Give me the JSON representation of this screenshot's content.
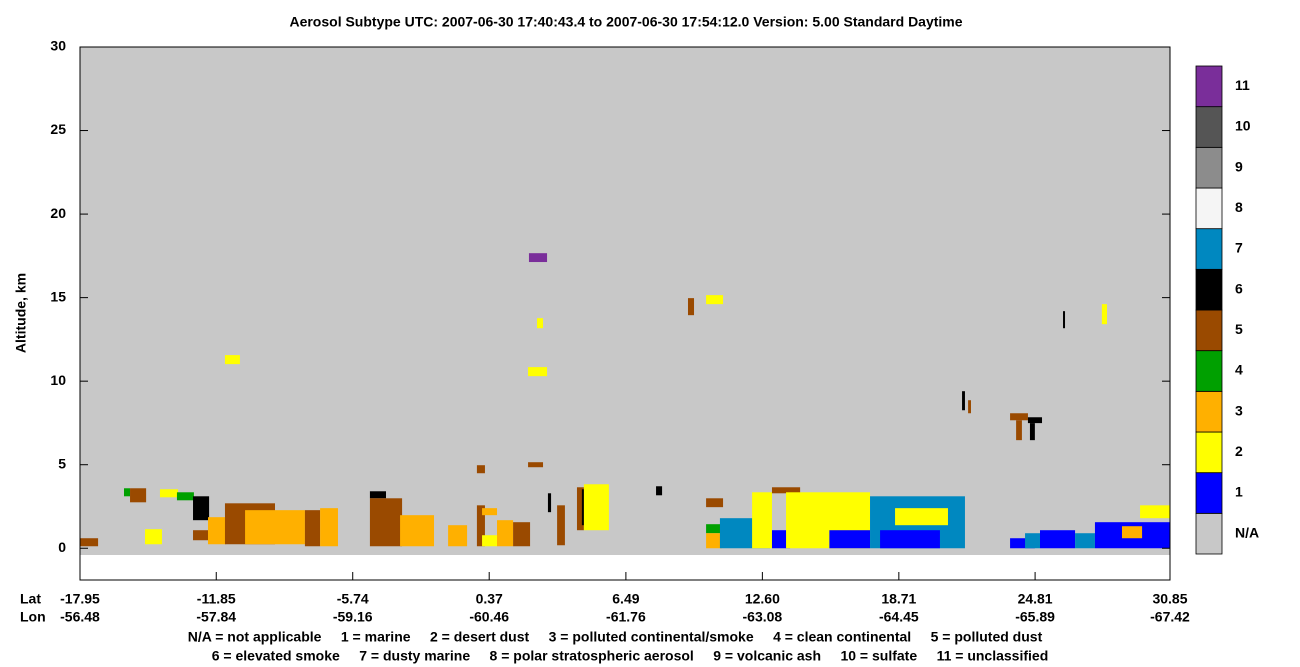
{
  "chart_data": {
    "type": "curtain",
    "title": "Aerosol Subtype    UTC:  2007-06-30    17:40:43.4  to  2007-06-30    17:54:12.0    Version: 5.00  Standard Daytime",
    "y_label": "Altitude, km",
    "ylim": [
      -1.9,
      30
    ],
    "yticks": [
      0,
      5,
      10,
      15,
      20,
      25,
      30
    ],
    "xlim": [
      -17.95,
      30.85
    ],
    "x_row_labels": [
      "Lat",
      "Lon"
    ],
    "xticks": [
      {
        "value": -17.95,
        "label": "-17.95",
        "lon": "-56.48"
      },
      {
        "value": -11.85,
        "label": "-11.85",
        "lon": "-57.84"
      },
      {
        "value": -5.74,
        "label": "-5.74",
        "lon": "-59.16"
      },
      {
        "value": 0.37,
        "label": "0.37",
        "lon": "-60.46"
      },
      {
        "value": 6.49,
        "label": "6.49",
        "lon": "-61.76"
      },
      {
        "value": 12.6,
        "label": "12.60",
        "lon": "-63.08"
      },
      {
        "value": 18.71,
        "label": "18.71",
        "lon": "-64.45"
      },
      {
        "value": 24.81,
        "label": "24.81",
        "lon": "-65.89"
      },
      {
        "value": 30.85,
        "label": "30.85",
        "lon": "-67.42"
      }
    ],
    "background_color": "#c8c8c8",
    "colorbar": {
      "labels": [
        "N/A",
        "1",
        "2",
        "3",
        "4",
        "5",
        "6",
        "7",
        "8",
        "9",
        "10",
        "11"
      ],
      "colors": [
        "#c8c8c8",
        "#0000ff",
        "#ffff00",
        "#ffb000",
        "#00a000",
        "#9a4a00",
        "#000000",
        "#0088c0",
        "#f5f5f5",
        "#8c8c8c",
        "#555555",
        "#7a2e9a"
      ]
    },
    "legend_lines": [
      "N/A = not applicable     1 = marine     2 = desert dust     3 = polluted continental/smoke     4 = clean continental     5 = polluted dust",
      "6 = elevated smoke     7 = dusty marine     8 = polar stratospheric aerosol     9 = volcanic ash     10 = sulfate     11 = unclassified"
    ],
    "patches": [
      [
        -17.95,
        -17.14,
        0.12,
        0.6,
        5
      ],
      [
        -15.98,
        -15.71,
        3.11,
        3.59,
        4
      ],
      [
        -15.71,
        -14.99,
        2.75,
        3.59,
        5
      ],
      [
        -15.04,
        -14.28,
        0.24,
        1.14,
        2
      ],
      [
        -14.37,
        -13.56,
        3.05,
        3.53,
        2
      ],
      [
        -13.61,
        -12.85,
        2.87,
        3.35,
        4
      ],
      [
        -12.89,
        -12.17,
        1.68,
        3.11,
        6
      ],
      [
        -12.89,
        -12.17,
        0.48,
        1.08,
        5
      ],
      [
        -12.22,
        -11.41,
        0.24,
        1.86,
        3
      ],
      [
        -11.46,
        -9.22,
        0.24,
        2.69,
        5
      ],
      [
        -10.56,
        -7.88,
        0.24,
        2.28,
        3
      ],
      [
        -7.88,
        -7.2,
        0.12,
        2.28,
        5
      ],
      [
        -7.2,
        -6.4,
        0.12,
        2.4,
        3
      ],
      [
        -11.46,
        -10.79,
        11.02,
        11.56,
        2
      ],
      [
        -4.97,
        -4.25,
        2.99,
        3.41,
        6
      ],
      [
        -4.97,
        -3.53,
        0.12,
        2.99,
        5
      ],
      [
        -3.62,
        -2.1,
        0.12,
        1.98,
        3
      ],
      [
        -1.47,
        -0.62,
        0.12,
        1.38,
        3
      ],
      [
        -0.18,
        0.18,
        4.49,
        4.97,
        5
      ],
      [
        -0.18,
        0.18,
        0.12,
        2.57,
        5
      ],
      [
        0.05,
        0.72,
        1.98,
        2.4,
        3
      ],
      [
        0.05,
        0.72,
        0.12,
        0.78,
        2
      ],
      [
        0.72,
        1.44,
        0.12,
        1.68,
        3
      ],
      [
        1.44,
        2.2,
        0.12,
        1.56,
        5
      ],
      [
        2.11,
        2.78,
        4.85,
        5.15,
        5
      ],
      [
        2.11,
        2.96,
        10.3,
        10.84,
        2
      ],
      [
        2.51,
        2.78,
        13.17,
        13.77,
        2
      ],
      [
        2.15,
        2.96,
        17.13,
        17.66,
        11
      ],
      [
        3.0,
        3.14,
        2.16,
        3.29,
        6
      ],
      [
        3.41,
        3.76,
        0.18,
        2.57,
        5
      ],
      [
        4.3,
        4.61,
        1.08,
        3.65,
        5
      ],
      [
        4.52,
        4.7,
        1.38,
        3.53,
        6
      ],
      [
        4.61,
        5.73,
        1.08,
        3.83,
        2
      ],
      [
        7.84,
        8.11,
        3.17,
        3.71,
        6
      ],
      [
        9.27,
        9.54,
        13.95,
        14.97,
        5
      ],
      [
        10.08,
        10.84,
        14.61,
        15.15,
        2
      ],
      [
        10.08,
        10.84,
        2.46,
        2.99,
        5
      ],
      [
        10.08,
        10.79,
        0.9,
        1.44,
        4
      ],
      [
        10.08,
        10.79,
        0,
        0.9,
        3
      ],
      [
        10.7,
        12.94,
        0,
        1.8,
        7
      ],
      [
        12.14,
        13.03,
        0,
        3.35,
        2
      ],
      [
        13.03,
        13.84,
        0,
        1.08,
        1
      ],
      [
        13.03,
        14.29,
        3.29,
        3.65,
        5
      ],
      [
        13.66,
        17.42,
        0,
        3.35,
        2
      ],
      [
        15.6,
        17.42,
        0,
        1.08,
        1
      ],
      [
        17.42,
        21.67,
        0,
        3.11,
        7
      ],
      [
        17.87,
        20.55,
        0,
        1.08,
        1
      ],
      [
        18.54,
        20.91,
        1.38,
        2.4,
        2
      ],
      [
        23.69,
        24.49,
        7.66,
        8.08,
        5
      ],
      [
        23.96,
        24.22,
        6.47,
        7.66,
        5
      ],
      [
        24.49,
        25.12,
        7.49,
        7.84,
        6
      ],
      [
        24.58,
        24.8,
        6.47,
        7.49,
        6
      ],
      [
        21.54,
        21.67,
        8.26,
        9.4,
        6
      ],
      [
        21.81,
        21.94,
        8.08,
        8.86,
        5
      ],
      [
        27.8,
        28.03,
        13.41,
        14.61,
        2
      ],
      [
        26.06,
        26.15,
        13.17,
        14.19,
        6
      ],
      [
        23.69,
        24.8,
        0,
        0.6,
        1
      ],
      [
        24.36,
        25.03,
        0,
        0.9,
        7
      ],
      [
        25.03,
        26.6,
        0,
        1.08,
        1
      ],
      [
        26.6,
        27.49,
        0,
        0.9,
        7
      ],
      [
        27.49,
        30.85,
        0,
        1.56,
        1
      ],
      [
        28.7,
        29.6,
        0.6,
        1.32,
        3
      ],
      [
        29.51,
        30.85,
        1.8,
        2.57,
        2
      ]
    ]
  }
}
